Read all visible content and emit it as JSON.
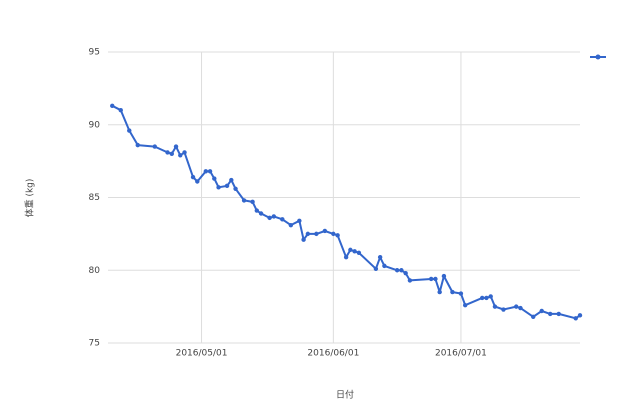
{
  "chart_data": {
    "type": "line",
    "x_title": "日付",
    "y_title": "体重 (kg)",
    "x": [
      "2016/04/10",
      "2016/04/12",
      "2016/04/14",
      "2016/04/16",
      "2016/04/20",
      "2016/04/23",
      "2016/04/24",
      "2016/04/25",
      "2016/04/26",
      "2016/04/27",
      "2016/04/29",
      "2016/04/30",
      "2016/05/02",
      "2016/05/03",
      "2016/05/04",
      "2016/05/05",
      "2016/05/07",
      "2016/05/08",
      "2016/05/09",
      "2016/05/11",
      "2016/05/13",
      "2016/05/14",
      "2016/05/15",
      "2016/05/17",
      "2016/05/18",
      "2016/05/20",
      "2016/05/22",
      "2016/05/24",
      "2016/05/25",
      "2016/05/26",
      "2016/05/28",
      "2016/05/30",
      "2016/06/01",
      "2016/06/02",
      "2016/06/04",
      "2016/06/05",
      "2016/06/06",
      "2016/06/07",
      "2016/06/11",
      "2016/06/12",
      "2016/06/13",
      "2016/06/16",
      "2016/06/17",
      "2016/06/18",
      "2016/06/19",
      "2016/06/24",
      "2016/06/25",
      "2016/06/26",
      "2016/06/27",
      "2016/06/29",
      "2016/07/01",
      "2016/07/02",
      "2016/07/06",
      "2016/07/07",
      "2016/07/08",
      "2016/07/09",
      "2016/07/11",
      "2016/07/14",
      "2016/07/15",
      "2016/07/18",
      "2016/07/20",
      "2016/07/22",
      "2016/07/24",
      "2016/07/28",
      "2016/07/29"
    ],
    "series": [
      {
        "color": "#3366cc",
        "values": [
          91.3,
          91.0,
          89.6,
          88.6,
          88.5,
          88.1,
          88.0,
          88.5,
          87.9,
          88.1,
          86.4,
          86.1,
          86.8,
          86.8,
          86.3,
          85.7,
          85.8,
          86.2,
          85.6,
          84.8,
          84.7,
          84.1,
          83.9,
          83.6,
          83.7,
          83.5,
          83.1,
          83.4,
          82.1,
          82.5,
          82.5,
          82.7,
          82.5,
          82.4,
          80.9,
          81.4,
          81.3,
          81.2,
          80.1,
          80.9,
          80.3,
          80.0,
          80.0,
          79.8,
          79.3,
          79.4,
          79.4,
          78.5,
          79.6,
          78.5,
          78.4,
          77.6,
          78.1,
          78.1,
          78.2,
          77.5,
          77.3,
          77.5,
          77.4,
          76.8,
          77.2,
          77.0,
          77.0,
          76.7,
          76.9
        ]
      }
    ],
    "xlim": [
      "2016/04/09",
      "2016/07/29"
    ],
    "xticks": [
      "2016/05/01",
      "2016/06/01",
      "2016/07/01"
    ],
    "ylim": [
      75,
      95
    ],
    "yticks": [
      75,
      80,
      85,
      90,
      95
    ],
    "grid": true,
    "legend": "top-right"
  }
}
